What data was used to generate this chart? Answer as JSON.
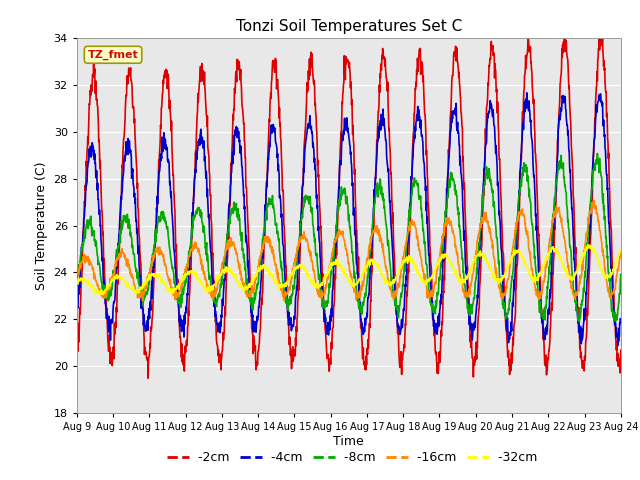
{
  "title": "Tonzi Soil Temperatures Set C",
  "xlabel": "Time",
  "ylabel": "Soil Temperature (C)",
  "ylim": [
    18,
    34
  ],
  "yticks": [
    18,
    20,
    22,
    24,
    26,
    28,
    30,
    32,
    34
  ],
  "xtick_labels": [
    "Aug 9",
    "Aug 10",
    "Aug 11",
    "Aug 12",
    "Aug 13",
    "Aug 14",
    "Aug 15",
    "Aug 16",
    "Aug 17",
    "Aug 18",
    "Aug 19",
    "Aug 20",
    "Aug 21",
    "Aug 22",
    "Aug 23",
    "Aug 24"
  ],
  "colors": {
    "-2cm": "#dd0000",
    "-4cm": "#0000cc",
    "-8cm": "#00aa00",
    "-16cm": "#ff8800",
    "-32cm": "#ffff00"
  },
  "legend_label": "TZ_fmet",
  "background_color": "#e8e8e8",
  "plot_bg": "#e8e8e8",
  "grid_color": "#ffffff",
  "n_days": 15,
  "n_points_per_day": 96,
  "figsize": [
    6.4,
    4.8
  ],
  "dpi": 100
}
